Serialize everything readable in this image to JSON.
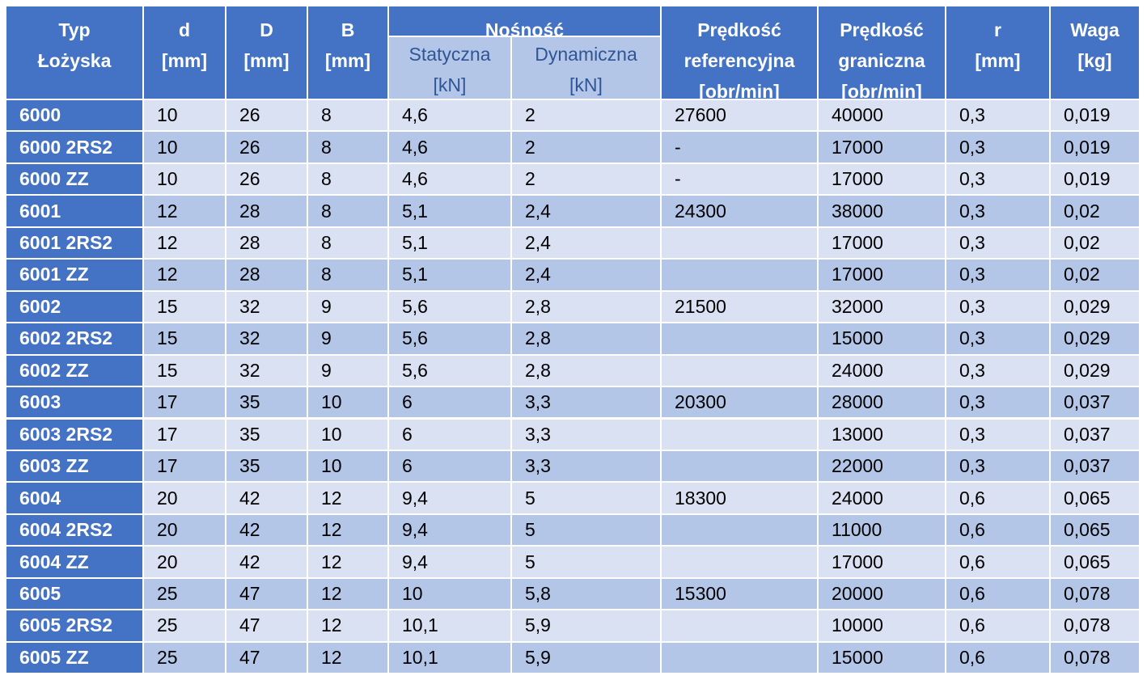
{
  "table": {
    "header": [
      {
        "lines": [
          "Typ",
          "Łożyska"
        ]
      },
      {
        "lines": [
          "d",
          "[mm]"
        ]
      },
      {
        "lines": [
          "D",
          "[mm]"
        ]
      },
      {
        "lines": [
          "B",
          "[mm]"
        ]
      },
      {
        "lines": [
          "Nośność"
        ],
        "sub": [
          {
            "lines": [
              "Statyczna",
              "[kN]"
            ]
          },
          {
            "lines": [
              "Dynamiczna",
              "[kN]"
            ]
          }
        ]
      },
      {
        "lines": [
          "Prędkość",
          "referencyjna",
          "[obr/min]"
        ]
      },
      {
        "lines": [
          "Prędkość",
          "graniczna",
          "[obr/min]"
        ]
      },
      {
        "lines": [
          "r",
          "[mm]"
        ]
      },
      {
        "lines": [
          "Waga",
          "[kg]"
        ]
      }
    ],
    "rows": [
      [
        "6000",
        "10",
        "26",
        "8",
        "4,6",
        "2",
        "27600",
        "40000",
        "0,3",
        "0,019"
      ],
      [
        "6000 2RS2",
        "10",
        "26",
        "8",
        "4,6",
        "2",
        "-",
        "17000",
        "0,3",
        "0,019"
      ],
      [
        "6000 ZZ",
        "10",
        "26",
        "8",
        "4,6",
        "2",
        "-",
        "17000",
        "0,3",
        "0,019"
      ],
      [
        "6001",
        "12",
        "28",
        "8",
        "5,1",
        "2,4",
        "24300",
        "38000",
        "0,3",
        "0,02"
      ],
      [
        "6001 2RS2",
        "12",
        "28",
        "8",
        "5,1",
        "2,4",
        null,
        "17000",
        "0,3",
        "0,02"
      ],
      [
        "6001 ZZ",
        "12",
        "28",
        "8",
        "5,1",
        "2,4",
        null,
        "17000",
        "0,3",
        "0,02"
      ],
      [
        "6002",
        "15",
        "32",
        "9",
        "5,6",
        "2,8",
        "21500",
        "32000",
        "0,3",
        "0,029"
      ],
      [
        "6002 2RS2",
        "15",
        "32",
        "9",
        "5,6",
        "2,8",
        null,
        "15000",
        "0,3",
        "0,029"
      ],
      [
        "6002 ZZ",
        "15",
        "32",
        "9",
        "5,6",
        "2,8",
        null,
        "24000",
        "0,3",
        "0,029"
      ],
      [
        "6003",
        "17",
        "35",
        "10",
        "6",
        "3,3",
        "20300",
        "28000",
        "0,3",
        "0,037"
      ],
      [
        "6003 2RS2",
        "17",
        "35",
        "10",
        "6",
        "3,3",
        null,
        "13000",
        "0,3",
        "0,037"
      ],
      [
        "6003 ZZ",
        "17",
        "35",
        "10",
        "6",
        "3,3",
        null,
        "22000",
        "0,3",
        "0,037"
      ],
      [
        "6004",
        "20",
        "42",
        "12",
        "9,4",
        "5",
        "18300",
        "24000",
        "0,6",
        "0,065"
      ],
      [
        "6004 2RS2",
        "20",
        "42",
        "12",
        "9,4",
        "5",
        null,
        "11000",
        "0,6",
        "0,065"
      ],
      [
        "6004 ZZ",
        "20",
        "42",
        "12",
        "9,4",
        "5",
        null,
        "17000",
        "0,6",
        "0,065"
      ],
      [
        "6005",
        "25",
        "47",
        "12",
        "10",
        "5,8",
        "15300",
        "20000",
        "0,6",
        "0,078"
      ],
      [
        "6005 2RS2",
        "25",
        "47",
        "12",
        "10,1",
        "5,9",
        null,
        "10000",
        "0,6",
        "0,078"
      ],
      [
        "6005 ZZ",
        "25",
        "47",
        "12",
        "10,1",
        "5,9",
        null,
        "15000",
        "0,6",
        "0,078"
      ]
    ]
  }
}
